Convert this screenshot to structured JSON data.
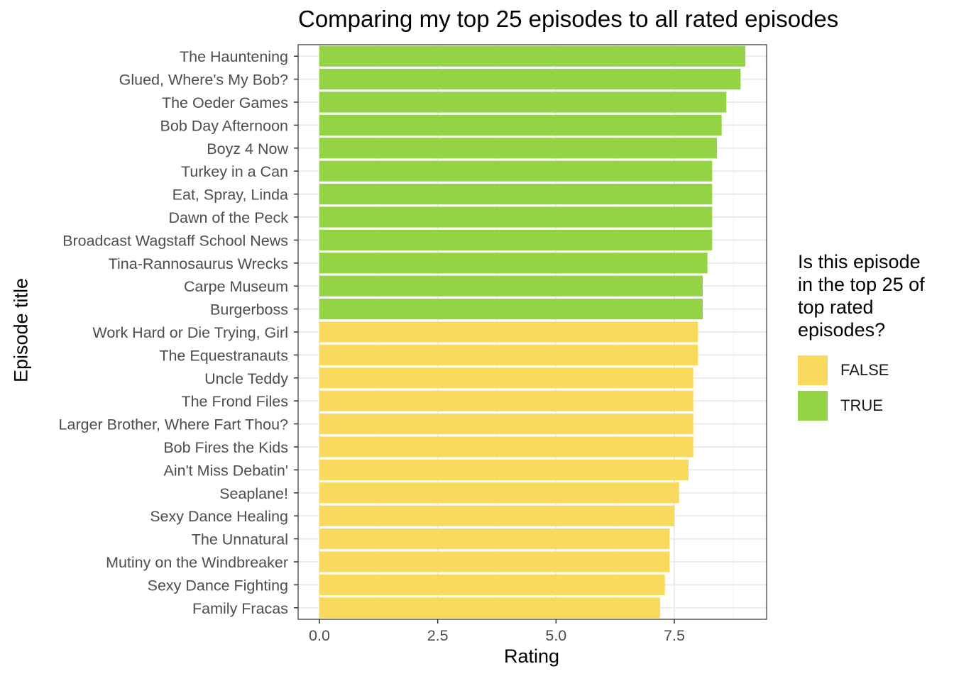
{
  "chart_data": {
    "type": "bar",
    "orientation": "horizontal",
    "title": "Comparing my top 25 episodes to all rated episodes",
    "xlabel": "Rating",
    "ylabel": "Episode title",
    "xlim": [
      -0.45,
      9.45
    ],
    "xticks": [
      0.0,
      2.5,
      5.0,
      7.5
    ],
    "xtick_labels": [
      "0.0",
      "2.5",
      "5.0",
      "7.5"
    ],
    "grid": true,
    "legend": {
      "title": [
        "Is this episode",
        "in the top 25 of",
        "top rated",
        "episodes?"
      ],
      "position": "right",
      "entries": [
        {
          "label": "FALSE",
          "color": "#FADA5E"
        },
        {
          "label": "TRUE",
          "color": "#94D444"
        }
      ]
    },
    "categories": [
      "The Hauntening",
      "Glued, Where's My Bob?",
      "The Oeder Games",
      "Bob Day Afternoon",
      "Boyz 4 Now",
      "Turkey in a Can",
      "Eat, Spray, Linda",
      "Dawn of the Peck",
      "Broadcast Wagstaff School News",
      "Tina-Rannosaurus Wrecks",
      "Carpe Museum",
      "Burgerboss",
      "Work Hard or Die Trying, Girl",
      "The Equestranauts",
      "Uncle Teddy",
      "The Frond Files",
      "Larger Brother, Where Fart Thou?",
      "Bob Fires the Kids",
      "Ain't Miss Debatin'",
      "Seaplane!",
      "Sexy Dance Healing",
      "The Unnatural",
      "Mutiny on the Windbreaker",
      "Sexy Dance Fighting",
      "Family Fracas"
    ],
    "values": [
      9.0,
      8.9,
      8.6,
      8.5,
      8.4,
      8.3,
      8.3,
      8.3,
      8.3,
      8.2,
      8.1,
      8.1,
      8.0,
      8.0,
      7.9,
      7.9,
      7.9,
      7.9,
      7.8,
      7.6,
      7.5,
      7.4,
      7.4,
      7.3,
      7.2
    ],
    "top25": [
      true,
      true,
      true,
      true,
      true,
      true,
      true,
      true,
      true,
      true,
      true,
      true,
      false,
      false,
      false,
      false,
      false,
      false,
      false,
      false,
      false,
      false,
      false,
      false,
      false
    ]
  }
}
